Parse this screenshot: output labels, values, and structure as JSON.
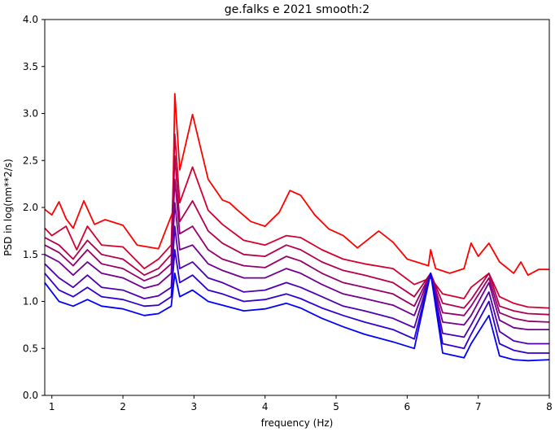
{
  "chart_data": {
    "type": "line",
    "title": "ge.falks e 2021 smooth:2",
    "xlabel": "frequency (Hz)",
    "ylabel": "PSD in log(nm**2/s)",
    "xlim": [
      0.9,
      8.0
    ],
    "ylim": [
      0.0,
      4.0
    ],
    "xticks": [
      1,
      2,
      3,
      4,
      5,
      6,
      7,
      8
    ],
    "yticks": [
      0.0,
      0.5,
      1.0,
      1.5,
      2.0,
      2.5,
      3.0,
      3.5,
      4.0
    ],
    "grid": false,
    "legend": "none",
    "series": [
      {
        "color": "#ff0000",
        "points": [
          [
            0.9,
            1.98
          ],
          [
            1.0,
            1.92
          ],
          [
            1.1,
            2.06
          ],
          [
            1.2,
            1.88
          ],
          [
            1.3,
            1.78
          ],
          [
            1.45,
            2.07
          ],
          [
            1.6,
            1.82
          ],
          [
            1.75,
            1.87
          ],
          [
            2.0,
            1.81
          ],
          [
            2.2,
            1.6
          ],
          [
            2.5,
            1.56
          ],
          [
            2.7,
            1.95
          ],
          [
            2.73,
            3.21
          ],
          [
            2.8,
            2.4
          ],
          [
            2.98,
            2.99
          ],
          [
            3.2,
            2.3
          ],
          [
            3.4,
            2.08
          ],
          [
            3.5,
            2.05
          ],
          [
            3.6,
            1.98
          ],
          [
            3.8,
            1.85
          ],
          [
            4.0,
            1.8
          ],
          [
            4.2,
            1.95
          ],
          [
            4.35,
            2.18
          ],
          [
            4.5,
            2.13
          ],
          [
            4.7,
            1.92
          ],
          [
            4.9,
            1.77
          ],
          [
            5.1,
            1.7
          ],
          [
            5.3,
            1.57
          ],
          [
            5.6,
            1.75
          ],
          [
            5.8,
            1.63
          ],
          [
            6.0,
            1.45
          ],
          [
            6.3,
            1.38
          ],
          [
            6.33,
            1.55
          ],
          [
            6.4,
            1.35
          ],
          [
            6.6,
            1.3
          ],
          [
            6.8,
            1.35
          ],
          [
            6.9,
            1.62
          ],
          [
            7.0,
            1.48
          ],
          [
            7.15,
            1.62
          ],
          [
            7.3,
            1.42
          ],
          [
            7.5,
            1.3
          ],
          [
            7.6,
            1.42
          ],
          [
            7.7,
            1.28
          ],
          [
            7.85,
            1.34
          ],
          [
            8.0,
            1.34
          ]
        ]
      },
      {
        "color": "#d30030",
        "points": [
          [
            0.9,
            1.78
          ],
          [
            1.0,
            1.7
          ],
          [
            1.2,
            1.8
          ],
          [
            1.35,
            1.55
          ],
          [
            1.5,
            1.8
          ],
          [
            1.7,
            1.6
          ],
          [
            2.0,
            1.58
          ],
          [
            2.3,
            1.35
          ],
          [
            2.5,
            1.45
          ],
          [
            2.68,
            1.6
          ],
          [
            2.73,
            2.78
          ],
          [
            2.8,
            2.05
          ],
          [
            2.98,
            2.43
          ],
          [
            3.2,
            1.97
          ],
          [
            3.4,
            1.82
          ],
          [
            3.7,
            1.65
          ],
          [
            4.0,
            1.6
          ],
          [
            4.3,
            1.7
          ],
          [
            4.5,
            1.68
          ],
          [
            4.8,
            1.55
          ],
          [
            5.1,
            1.45
          ],
          [
            5.4,
            1.4
          ],
          [
            5.8,
            1.35
          ],
          [
            6.1,
            1.18
          ],
          [
            6.33,
            1.25
          ],
          [
            6.5,
            1.08
          ],
          [
            6.8,
            1.03
          ],
          [
            6.9,
            1.15
          ],
          [
            7.15,
            1.3
          ],
          [
            7.3,
            1.05
          ],
          [
            7.5,
            0.98
          ],
          [
            7.7,
            0.94
          ],
          [
            8.0,
            0.93
          ]
        ]
      },
      {
        "color": "#b3004c",
        "points": [
          [
            0.9,
            1.68
          ],
          [
            1.1,
            1.6
          ],
          [
            1.3,
            1.45
          ],
          [
            1.5,
            1.65
          ],
          [
            1.7,
            1.5
          ],
          [
            2.0,
            1.45
          ],
          [
            2.3,
            1.28
          ],
          [
            2.5,
            1.35
          ],
          [
            2.68,
            1.5
          ],
          [
            2.73,
            2.55
          ],
          [
            2.8,
            1.85
          ],
          [
            2.98,
            2.07
          ],
          [
            3.2,
            1.75
          ],
          [
            3.4,
            1.62
          ],
          [
            3.7,
            1.5
          ],
          [
            4.0,
            1.48
          ],
          [
            4.3,
            1.6
          ],
          [
            4.5,
            1.55
          ],
          [
            4.8,
            1.42
          ],
          [
            5.1,
            1.33
          ],
          [
            5.4,
            1.28
          ],
          [
            5.8,
            1.2
          ],
          [
            6.1,
            1.05
          ],
          [
            6.33,
            1.3
          ],
          [
            6.5,
            0.98
          ],
          [
            6.8,
            0.93
          ],
          [
            6.9,
            1.02
          ],
          [
            7.15,
            1.3
          ],
          [
            7.3,
            0.95
          ],
          [
            7.5,
            0.9
          ],
          [
            7.7,
            0.87
          ],
          [
            8.0,
            0.86
          ]
        ]
      },
      {
        "color": "#94006b",
        "points": [
          [
            0.9,
            1.6
          ],
          [
            1.1,
            1.52
          ],
          [
            1.3,
            1.38
          ],
          [
            1.5,
            1.55
          ],
          [
            1.7,
            1.4
          ],
          [
            2.0,
            1.35
          ],
          [
            2.3,
            1.22
          ],
          [
            2.5,
            1.28
          ],
          [
            2.68,
            1.4
          ],
          [
            2.73,
            2.3
          ],
          [
            2.8,
            1.72
          ],
          [
            2.98,
            1.8
          ],
          [
            3.2,
            1.55
          ],
          [
            3.4,
            1.45
          ],
          [
            3.7,
            1.38
          ],
          [
            4.0,
            1.36
          ],
          [
            4.3,
            1.48
          ],
          [
            4.5,
            1.43
          ],
          [
            4.8,
            1.3
          ],
          [
            5.1,
            1.2
          ],
          [
            5.4,
            1.15
          ],
          [
            5.8,
            1.08
          ],
          [
            6.1,
            0.95
          ],
          [
            6.33,
            1.3
          ],
          [
            6.5,
            0.88
          ],
          [
            6.8,
            0.85
          ],
          [
            6.9,
            0.95
          ],
          [
            7.15,
            1.25
          ],
          [
            7.3,
            0.88
          ],
          [
            7.5,
            0.82
          ],
          [
            7.7,
            0.79
          ],
          [
            8.0,
            0.78
          ]
        ]
      },
      {
        "color": "#70008f",
        "points": [
          [
            0.9,
            1.5
          ],
          [
            1.1,
            1.42
          ],
          [
            1.3,
            1.28
          ],
          [
            1.5,
            1.42
          ],
          [
            1.7,
            1.3
          ],
          [
            2.0,
            1.25
          ],
          [
            2.3,
            1.14
          ],
          [
            2.5,
            1.18
          ],
          [
            2.68,
            1.3
          ],
          [
            2.73,
            2.05
          ],
          [
            2.8,
            1.55
          ],
          [
            2.98,
            1.6
          ],
          [
            3.2,
            1.4
          ],
          [
            3.4,
            1.33
          ],
          [
            3.7,
            1.25
          ],
          [
            4.0,
            1.25
          ],
          [
            4.3,
            1.35
          ],
          [
            4.5,
            1.3
          ],
          [
            4.8,
            1.18
          ],
          [
            5.1,
            1.08
          ],
          [
            5.4,
            1.03
          ],
          [
            5.8,
            0.96
          ],
          [
            6.1,
            0.85
          ],
          [
            6.33,
            1.3
          ],
          [
            6.5,
            0.78
          ],
          [
            6.8,
            0.75
          ],
          [
            6.9,
            0.85
          ],
          [
            7.15,
            1.2
          ],
          [
            7.3,
            0.8
          ],
          [
            7.5,
            0.72
          ],
          [
            7.7,
            0.7
          ],
          [
            8.0,
            0.7
          ]
        ]
      },
      {
        "color": "#4e00b1",
        "points": [
          [
            0.9,
            1.4
          ],
          [
            1.1,
            1.25
          ],
          [
            1.3,
            1.15
          ],
          [
            1.5,
            1.28
          ],
          [
            1.7,
            1.15
          ],
          [
            2.0,
            1.12
          ],
          [
            2.3,
            1.03
          ],
          [
            2.5,
            1.06
          ],
          [
            2.68,
            1.15
          ],
          [
            2.73,
            1.8
          ],
          [
            2.8,
            1.35
          ],
          [
            2.98,
            1.42
          ],
          [
            3.2,
            1.25
          ],
          [
            3.4,
            1.2
          ],
          [
            3.7,
            1.1
          ],
          [
            4.0,
            1.12
          ],
          [
            4.3,
            1.2
          ],
          [
            4.5,
            1.15
          ],
          [
            4.8,
            1.05
          ],
          [
            5.1,
            0.95
          ],
          [
            5.4,
            0.9
          ],
          [
            5.8,
            0.82
          ],
          [
            6.1,
            0.72
          ],
          [
            6.33,
            1.3
          ],
          [
            6.5,
            0.66
          ],
          [
            6.8,
            0.62
          ],
          [
            6.9,
            0.75
          ],
          [
            7.15,
            1.1
          ],
          [
            7.3,
            0.68
          ],
          [
            7.5,
            0.58
          ],
          [
            7.7,
            0.55
          ],
          [
            8.0,
            0.55
          ]
        ]
      },
      {
        "color": "#2e00d1",
        "points": [
          [
            0.9,
            1.3
          ],
          [
            1.1,
            1.12
          ],
          [
            1.3,
            1.05
          ],
          [
            1.5,
            1.15
          ],
          [
            1.7,
            1.05
          ],
          [
            2.0,
            1.02
          ],
          [
            2.3,
            0.95
          ],
          [
            2.5,
            0.96
          ],
          [
            2.68,
            1.05
          ],
          [
            2.73,
            1.55
          ],
          [
            2.8,
            1.2
          ],
          [
            2.98,
            1.28
          ],
          [
            3.2,
            1.12
          ],
          [
            3.4,
            1.08
          ],
          [
            3.7,
            1.0
          ],
          [
            4.0,
            1.02
          ],
          [
            4.3,
            1.08
          ],
          [
            4.5,
            1.03
          ],
          [
            4.8,
            0.93
          ],
          [
            5.1,
            0.85
          ],
          [
            5.4,
            0.78
          ],
          [
            5.8,
            0.7
          ],
          [
            6.1,
            0.6
          ],
          [
            6.33,
            1.3
          ],
          [
            6.5,
            0.55
          ],
          [
            6.8,
            0.5
          ],
          [
            6.9,
            0.65
          ],
          [
            7.15,
            1.0
          ],
          [
            7.3,
            0.55
          ],
          [
            7.5,
            0.48
          ],
          [
            7.7,
            0.45
          ],
          [
            8.0,
            0.45
          ]
        ]
      },
      {
        "color": "#0000ff",
        "points": [
          [
            0.9,
            1.2
          ],
          [
            1.1,
            1.0
          ],
          [
            1.3,
            0.95
          ],
          [
            1.5,
            1.02
          ],
          [
            1.7,
            0.95
          ],
          [
            2.0,
            0.92
          ],
          [
            2.3,
            0.85
          ],
          [
            2.5,
            0.87
          ],
          [
            2.68,
            0.95
          ],
          [
            2.73,
            1.3
          ],
          [
            2.8,
            1.05
          ],
          [
            2.98,
            1.12
          ],
          [
            3.2,
            1.0
          ],
          [
            3.4,
            0.96
          ],
          [
            3.7,
            0.9
          ],
          [
            4.0,
            0.92
          ],
          [
            4.3,
            0.98
          ],
          [
            4.5,
            0.93
          ],
          [
            4.8,
            0.82
          ],
          [
            5.1,
            0.73
          ],
          [
            5.4,
            0.65
          ],
          [
            5.8,
            0.57
          ],
          [
            6.1,
            0.5
          ],
          [
            6.33,
            1.3
          ],
          [
            6.5,
            0.45
          ],
          [
            6.8,
            0.4
          ],
          [
            6.9,
            0.55
          ],
          [
            7.15,
            0.85
          ],
          [
            7.3,
            0.42
          ],
          [
            7.5,
            0.38
          ],
          [
            7.7,
            0.37
          ],
          [
            8.0,
            0.38
          ]
        ]
      }
    ]
  }
}
